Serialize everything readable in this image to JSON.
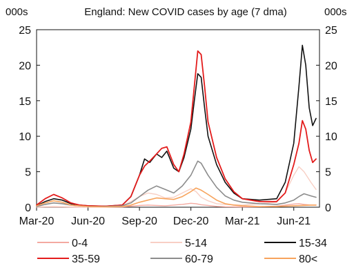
{
  "chart_data": {
    "type": "line",
    "title": "England: New COVID cases by age (7 dma)",
    "y_unit_left": "000s",
    "y_unit_right": "000s",
    "ylim": [
      0,
      25
    ],
    "y_ticks": [
      "0",
      "5",
      "10",
      "15",
      "20",
      "25"
    ],
    "x_tick_labels": [
      "Mar-20",
      "Jun-20",
      "Sep-20",
      "Dec-20",
      "Mar-21",
      "Jun-21"
    ],
    "x_range_months": [
      0,
      16.5
    ],
    "grid": false,
    "legend_position": "bottom",
    "series": [
      {
        "name": "0-4",
        "color": "#f4a9a0",
        "width": 1.4,
        "points": [
          [
            0,
            0.03
          ],
          [
            1,
            0.06
          ],
          [
            2,
            0.03
          ],
          [
            3,
            0.02
          ],
          [
            4,
            0.02
          ],
          [
            5,
            0.04
          ],
          [
            5.5,
            0.15
          ],
          [
            6,
            0.25
          ],
          [
            6.5,
            0.3
          ],
          [
            7,
            0.25
          ],
          [
            7.5,
            0.2
          ],
          [
            8,
            0.3
          ],
          [
            8.5,
            0.4
          ],
          [
            9,
            0.55
          ],
          [
            9.3,
            0.5
          ],
          [
            9.6,
            0.35
          ],
          [
            10,
            0.25
          ],
          [
            10.5,
            0.12
          ],
          [
            11,
            0.07
          ],
          [
            12,
            0.05
          ],
          [
            13,
            0.07
          ],
          [
            14,
            0.15
          ],
          [
            14.5,
            0.3
          ],
          [
            15,
            0.45
          ],
          [
            15.3,
            0.5
          ],
          [
            15.6,
            0.4
          ],
          [
            16,
            0.3
          ],
          [
            16.3,
            0.3
          ]
        ]
      },
      {
        "name": "5-14",
        "color": "#f8cfc4",
        "width": 1.4,
        "points": [
          [
            0,
            0.05
          ],
          [
            1,
            0.1
          ],
          [
            2,
            0.06
          ],
          [
            3,
            0.05
          ],
          [
            4,
            0.05
          ],
          [
            5,
            0.2
          ],
          [
            5.5,
            0.8
          ],
          [
            6,
            1.5
          ],
          [
            6.5,
            2.0
          ],
          [
            7,
            1.8
          ],
          [
            7.5,
            1.3
          ],
          [
            8,
            1.4
          ],
          [
            8.5,
            2.0
          ],
          [
            9,
            2.6
          ],
          [
            9.3,
            2.2
          ],
          [
            9.6,
            1.4
          ],
          [
            10,
            0.9
          ],
          [
            10.5,
            0.5
          ],
          [
            11,
            0.4
          ],
          [
            12,
            0.3
          ],
          [
            13,
            0.5
          ],
          [
            14,
            0.7
          ],
          [
            14.5,
            2.0
          ],
          [
            15,
            4.5
          ],
          [
            15.3,
            5.7
          ],
          [
            15.6,
            5.0
          ],
          [
            16,
            3.5
          ],
          [
            16.3,
            2.5
          ]
        ]
      },
      {
        "name": "15-34",
        "color": "#111111",
        "width": 1.6,
        "points": [
          [
            0,
            0.2
          ],
          [
            0.5,
            0.8
          ],
          [
            1,
            1.2
          ],
          [
            1.5,
            1.0
          ],
          [
            2,
            0.5
          ],
          [
            2.5,
            0.3
          ],
          [
            3,
            0.2
          ],
          [
            4,
            0.15
          ],
          [
            5,
            0.3
          ],
          [
            5.5,
            1.5
          ],
          [
            6,
            4.5
          ],
          [
            6.3,
            6.8
          ],
          [
            6.6,
            6.3
          ],
          [
            7,
            7.5
          ],
          [
            7.3,
            7.0
          ],
          [
            7.6,
            7.9
          ],
          [
            8,
            5.5
          ],
          [
            8.3,
            5.0
          ],
          [
            8.6,
            7.0
          ],
          [
            9,
            11
          ],
          [
            9.2,
            15
          ],
          [
            9.4,
            18.8
          ],
          [
            9.6,
            18.3
          ],
          [
            9.8,
            14
          ],
          [
            10,
            10
          ],
          [
            10.5,
            6
          ],
          [
            11,
            3.5
          ],
          [
            11.5,
            2.0
          ],
          [
            12,
            1.2
          ],
          [
            13,
            1.0
          ],
          [
            14,
            1.2
          ],
          [
            14.5,
            3.5
          ],
          [
            15,
            9
          ],
          [
            15.3,
            17
          ],
          [
            15.5,
            22.8
          ],
          [
            15.7,
            20
          ],
          [
            15.9,
            14
          ],
          [
            16.1,
            11.5
          ],
          [
            16.3,
            12.5
          ]
        ]
      },
      {
        "name": "35-59",
        "color": "#e31b1b",
        "width": 1.8,
        "points": [
          [
            0,
            0.3
          ],
          [
            0.5,
            1.2
          ],
          [
            1,
            1.8
          ],
          [
            1.5,
            1.3
          ],
          [
            2,
            0.6
          ],
          [
            2.5,
            0.3
          ],
          [
            3,
            0.2
          ],
          [
            4,
            0.15
          ],
          [
            5,
            0.3
          ],
          [
            5.5,
            1.5
          ],
          [
            6,
            4.5
          ],
          [
            6.3,
            5.8
          ],
          [
            6.6,
            6.5
          ],
          [
            7,
            7.5
          ],
          [
            7.3,
            8.3
          ],
          [
            7.6,
            8.5
          ],
          [
            8,
            6.0
          ],
          [
            8.3,
            5.0
          ],
          [
            8.6,
            7.5
          ],
          [
            9,
            12
          ],
          [
            9.2,
            17
          ],
          [
            9.4,
            22
          ],
          [
            9.6,
            21.5
          ],
          [
            9.8,
            17
          ],
          [
            10,
            12
          ],
          [
            10.5,
            7
          ],
          [
            11,
            4
          ],
          [
            11.5,
            2.2
          ],
          [
            12,
            1.2
          ],
          [
            13,
            0.8
          ],
          [
            14,
            0.8
          ],
          [
            14.5,
            2
          ],
          [
            15,
            6
          ],
          [
            15.3,
            9
          ],
          [
            15.5,
            12.2
          ],
          [
            15.7,
            11
          ],
          [
            15.9,
            8
          ],
          [
            16.1,
            6.3
          ],
          [
            16.3,
            6.8
          ]
        ]
      },
      {
        "name": "60-79",
        "color": "#8c8c8c",
        "width": 1.6,
        "points": [
          [
            0,
            0.1
          ],
          [
            0.5,
            0.4
          ],
          [
            1,
            0.6
          ],
          [
            1.5,
            0.5
          ],
          [
            2,
            0.3
          ],
          [
            3,
            0.1
          ],
          [
            4,
            0.1
          ],
          [
            5,
            0.2
          ],
          [
            5.5,
            0.6
          ],
          [
            6,
            1.5
          ],
          [
            6.5,
            2.4
          ],
          [
            7,
            3.0
          ],
          [
            7.5,
            2.5
          ],
          [
            8,
            2.0
          ],
          [
            8.5,
            3.0
          ],
          [
            9,
            4.5
          ],
          [
            9.4,
            6.5
          ],
          [
            9.6,
            6.2
          ],
          [
            10,
            4.5
          ],
          [
            10.5,
            2.8
          ],
          [
            11,
            1.6
          ],
          [
            11.5,
            1.0
          ],
          [
            12,
            0.7
          ],
          [
            13,
            0.5
          ],
          [
            14,
            0.4
          ],
          [
            14.5,
            0.6
          ],
          [
            15,
            1.0
          ],
          [
            15.3,
            1.5
          ],
          [
            15.6,
            1.9
          ],
          [
            16,
            1.6
          ],
          [
            16.3,
            1.4
          ]
        ]
      },
      {
        "name": "80<",
        "color": "#f7a35c",
        "width": 1.6,
        "points": [
          [
            0,
            0.2
          ],
          [
            0.5,
            0.6
          ],
          [
            1,
            0.9
          ],
          [
            1.5,
            0.7
          ],
          [
            2,
            0.3
          ],
          [
            3,
            0.1
          ],
          [
            4,
            0.05
          ],
          [
            5,
            0.1
          ],
          [
            5.5,
            0.3
          ],
          [
            6,
            0.7
          ],
          [
            6.5,
            1.0
          ],
          [
            7,
            1.3
          ],
          [
            7.5,
            1.2
          ],
          [
            8,
            1.1
          ],
          [
            8.5,
            1.5
          ],
          [
            9,
            2.2
          ],
          [
            9.3,
            2.7
          ],
          [
            9.6,
            2.4
          ],
          [
            10,
            1.8
          ],
          [
            10.5,
            1.0
          ],
          [
            11,
            0.5
          ],
          [
            11.5,
            0.3
          ],
          [
            12,
            0.2
          ],
          [
            13,
            0.1
          ],
          [
            14,
            0.1
          ],
          [
            15,
            0.2
          ],
          [
            16,
            0.3
          ],
          [
            16.3,
            0.3
          ]
        ]
      }
    ]
  }
}
